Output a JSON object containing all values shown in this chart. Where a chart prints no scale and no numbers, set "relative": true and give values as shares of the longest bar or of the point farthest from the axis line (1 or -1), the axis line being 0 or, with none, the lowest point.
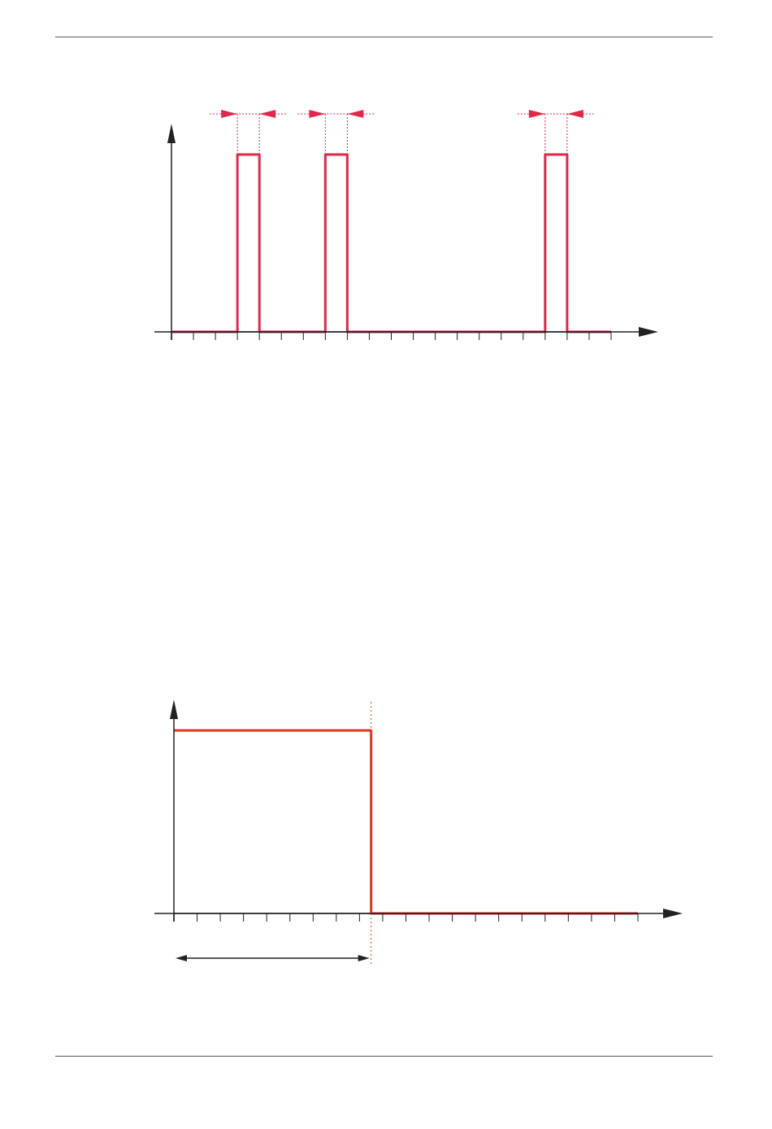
{
  "chart_data": [
    {
      "type": "step",
      "relative": true,
      "categories": [
        null,
        null,
        null,
        null,
        null,
        null,
        null,
        null,
        null,
        null,
        null,
        null,
        null,
        null,
        null,
        null,
        null,
        null,
        null,
        null,
        null
      ],
      "values": [
        0,
        0,
        0,
        1,
        0,
        0,
        0,
        1,
        0,
        0,
        0,
        0,
        0,
        0,
        0,
        0,
        0,
        1,
        0,
        0,
        0
      ],
      "color": "#e0284a"
    },
    {
      "type": "step",
      "relative": true,
      "categories": [
        null,
        null,
        null,
        null,
        null,
        null,
        null,
        null,
        null,
        null,
        null,
        null,
        null,
        null,
        null,
        null,
        null,
        null,
        null,
        null,
        null,
        null,
        null,
        null,
        null,
        null,
        null,
        null,
        null,
        null,
        null,
        null,
        null,
        null,
        null,
        null,
        null,
        null,
        null,
        null,
        null
      ],
      "values": [
        1,
        1,
        1,
        1,
        1,
        1,
        1,
        1,
        1,
        1,
        1,
        1,
        1,
        1,
        1,
        1,
        1,
        0,
        0,
        0,
        0,
        0,
        0,
        0,
        0,
        0,
        0,
        0,
        0,
        0,
        0,
        0,
        0,
        0,
        0,
        0,
        0,
        0,
        0,
        0,
        0
      ],
      "color": "#e2361f"
    }
  ]
}
